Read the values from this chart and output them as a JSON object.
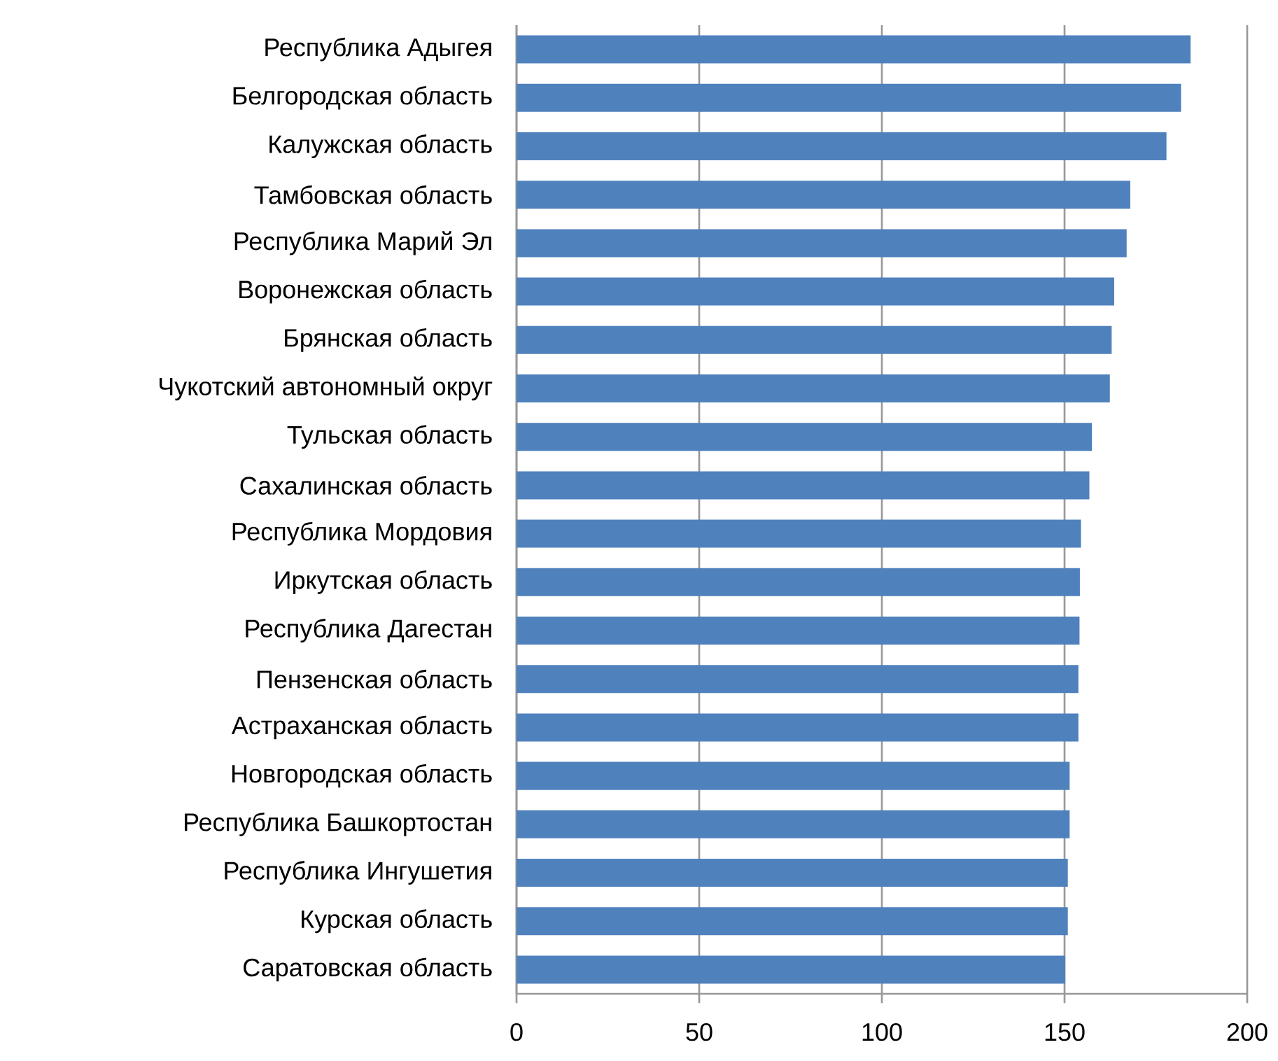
{
  "chart_data": {
    "type": "bar",
    "orientation": "horizontal",
    "categories": [
      "Республика Адыгея",
      "Белгородская область",
      "Калужская область",
      "Тамбовская область",
      "Республика Марий Эл",
      "Воронежская область",
      "Брянская область",
      "Чукотский автономный округ",
      "Тульская область",
      "Сахалинская область",
      "Республика Мордовия",
      "Иркутская область",
      "Республика Дагестан",
      "Пензенская область",
      "Астраханская область",
      "Новгородская область",
      "Республика Башкортостан",
      "Республика Ингушетия",
      "Курская область",
      "Саратовская область"
    ],
    "values": [
      184.5,
      181.9,
      177.9,
      168,
      167,
      163.6,
      162.9,
      162.4,
      157.5,
      156.8,
      154.5,
      154.2,
      154.1,
      153.8,
      153.8,
      151.4,
      151.4,
      150.9,
      150.9,
      150.2
    ],
    "color": "#4f81bd",
    "xlim": [
      0,
      200
    ],
    "xticks": [
      0,
      50,
      100,
      150,
      200
    ],
    "grid": "x"
  }
}
